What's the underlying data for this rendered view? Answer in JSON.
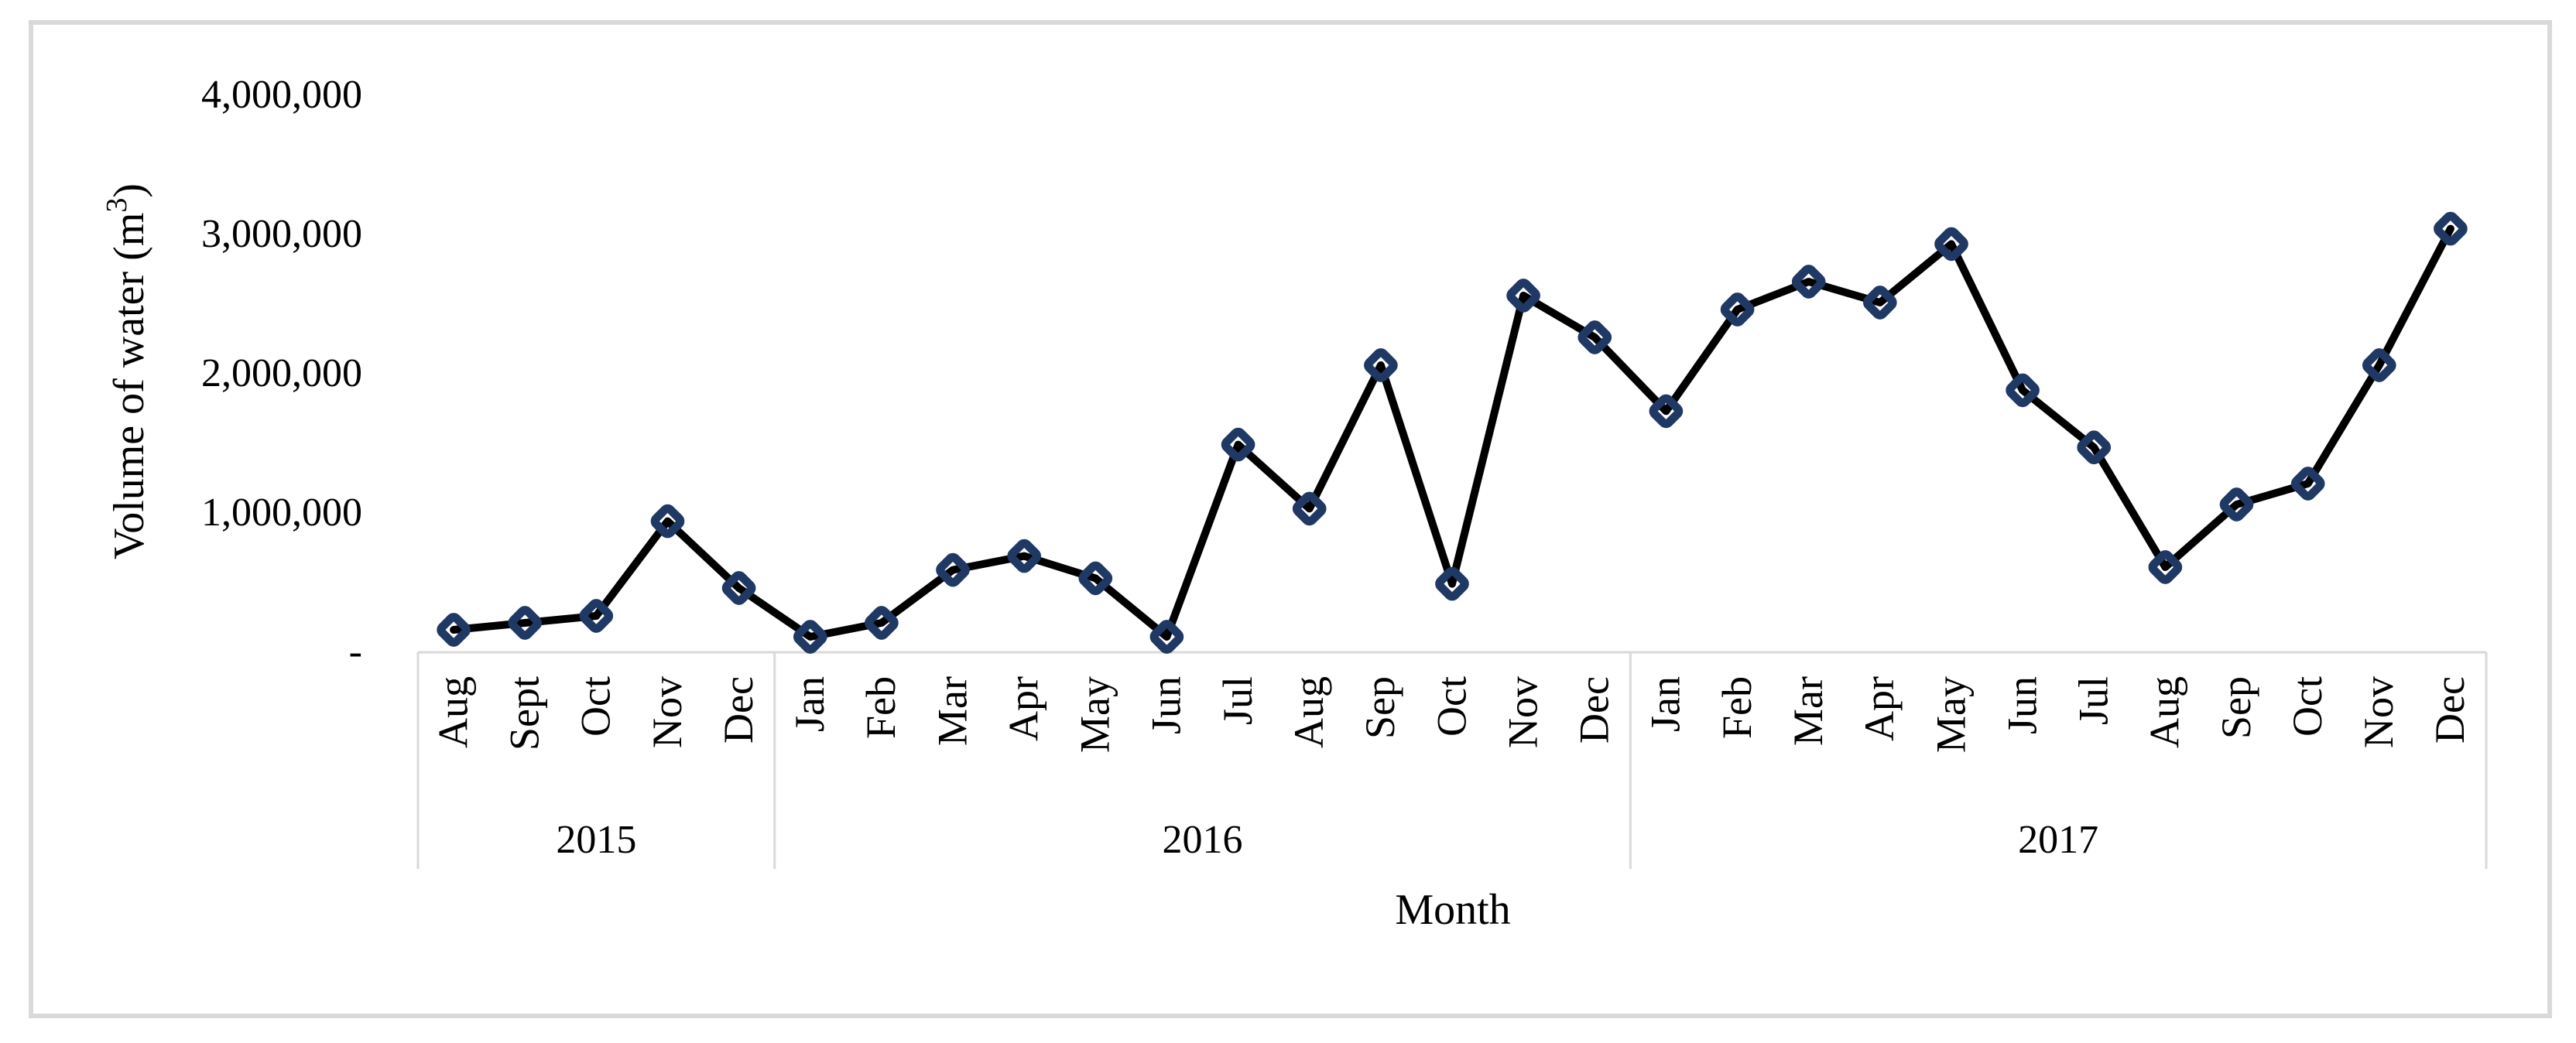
{
  "figure": {
    "y_axis_title": {
      "prefix": "Volume of water (m",
      "superscript": "3",
      "suffix": ")"
    },
    "x_axis_title": "Month",
    "y_ticks": [
      {
        "label": "4,000,000",
        "value": 4000000
      },
      {
        "label": "3,000,000",
        "value": 3000000
      },
      {
        "label": "2,000,000",
        "value": 2000000
      },
      {
        "label": "1,000,000",
        "value": 1000000
      },
      {
        "label": "-",
        "value": 0
      }
    ],
    "colors": {
      "line": "#000000",
      "marker_stroke": "#1F3864",
      "band_line": "#D9D9D9",
      "figure_border": "#D9D9D9",
      "text": "#000000"
    }
  },
  "chart_data": {
    "type": "line",
    "title": "",
    "xlabel": "Month",
    "ylabel": "Volume of water (m³)",
    "ylim": [
      0,
      4000000
    ],
    "y_tick_interval": 1000000,
    "grid": false,
    "legend": null,
    "marker": "diamond-open",
    "groups": [
      {
        "year": "2015",
        "months": [
          "Aug",
          "Sept",
          "Oct",
          "Nov",
          "Dec"
        ],
        "values": [
          150000,
          200000,
          250000,
          930000,
          450000
        ]
      },
      {
        "year": "2016",
        "months": [
          "Jan",
          "Feb",
          "Mar",
          "Apr",
          "May",
          "Jun",
          "Jul",
          "Aug",
          "Sep",
          "Oct",
          "Nov",
          "Dec"
        ],
        "values": [
          100000,
          200000,
          580000,
          680000,
          520000,
          100000,
          1480000,
          1020000,
          2050000,
          480000,
          2550000,
          2250000
        ]
      },
      {
        "year": "2017",
        "months": [
          "Jan",
          "Feb",
          "Mar",
          "Apr",
          "May",
          "Jun",
          "Jul",
          "Aug",
          "Sep",
          "Oct",
          "Nov",
          "Dec"
        ],
        "values": [
          1720000,
          2450000,
          2650000,
          2500000,
          2920000,
          1870000,
          1460000,
          600000,
          1050000,
          1200000,
          2050000,
          3030000
        ]
      }
    ]
  }
}
